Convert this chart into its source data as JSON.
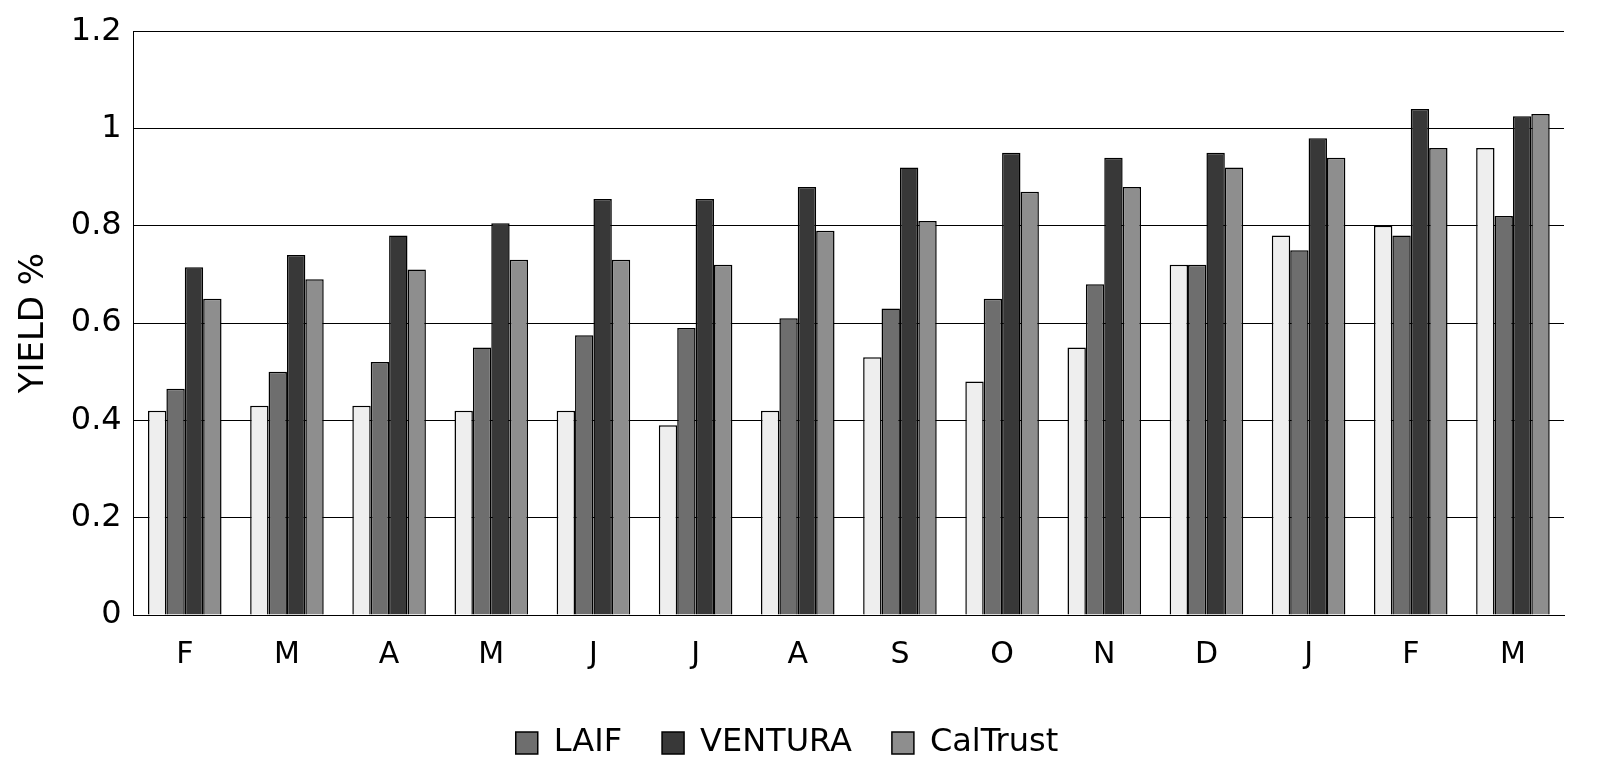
{
  "chart_data": {
    "type": "bar",
    "ylabel": "YIELD %",
    "categories": [
      "F",
      "M",
      "A",
      "M",
      "J",
      "J",
      "A",
      "S",
      "O",
      "N",
      "D",
      "J",
      "F",
      "M"
    ],
    "series": [
      {
        "color": "#eeeeee",
        "values": [
          0.42,
          0.43,
          0.43,
          0.42,
          0.42,
          0.39,
          0.42,
          0.53,
          0.48,
          0.55,
          0.72,
          0.78,
          0.8,
          0.96
        ]
      },
      {
        "name": "LAIF",
        "color": "#6e6e6e",
        "values": [
          0.465,
          0.5,
          0.52,
          0.55,
          0.575,
          0.59,
          0.61,
          0.63,
          0.65,
          0.68,
          0.72,
          0.75,
          0.78,
          0.82
        ]
      },
      {
        "name": "VENTURA",
        "color": "#383838",
        "values": [
          0.715,
          0.74,
          0.78,
          0.805,
          0.855,
          0.855,
          0.88,
          0.92,
          0.95,
          0.94,
          0.95,
          0.98,
          1.04,
          1.025
        ]
      },
      {
        "name": "CalTrust",
        "color": "#8e8e8e",
        "values": [
          0.65,
          0.69,
          0.71,
          0.73,
          0.73,
          0.72,
          0.79,
          0.81,
          0.87,
          0.88,
          0.92,
          0.94,
          0.96,
          1.03
        ]
      }
    ],
    "ylim": [
      0,
      1.2
    ],
    "yticks": [
      0,
      0.2,
      0.4,
      0.6,
      0.8,
      1,
      1.2
    ],
    "grid": "y",
    "legend": "bottom"
  }
}
